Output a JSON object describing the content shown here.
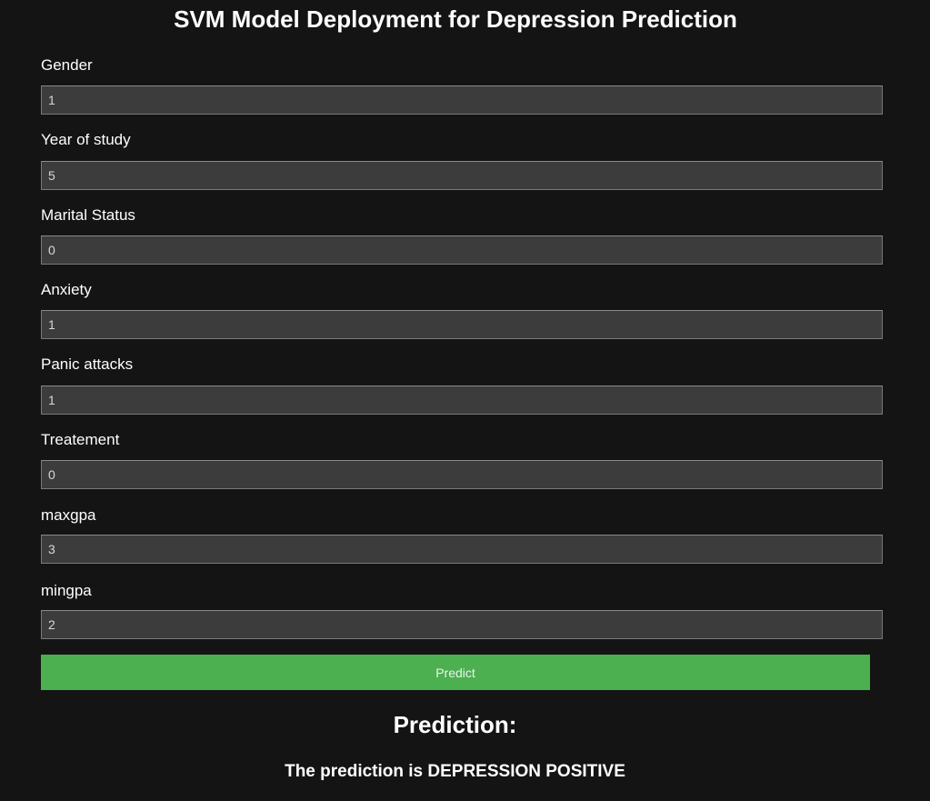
{
  "title": "SVM Model Deployment for Depression Prediction",
  "fields": [
    {
      "label": "Gender",
      "value": "1"
    },
    {
      "label": "Year of study",
      "value": "5"
    },
    {
      "label": "Marital Status",
      "value": "0"
    },
    {
      "label": "Anxiety",
      "value": "1"
    },
    {
      "label": "Panic attacks",
      "value": "1"
    },
    {
      "label": "Treatement",
      "value": "0"
    },
    {
      "label": "maxgpa",
      "value": "3"
    },
    {
      "label": "mingpa",
      "value": "2"
    }
  ],
  "predict_button": "Predict",
  "result": {
    "heading": "Prediction:",
    "text": "The prediction is DEPRESSION POSITIVE"
  },
  "colors": {
    "background": "#141414",
    "input_background": "#3c3c3c",
    "button": "#4caf50",
    "text": "#ffffff"
  }
}
